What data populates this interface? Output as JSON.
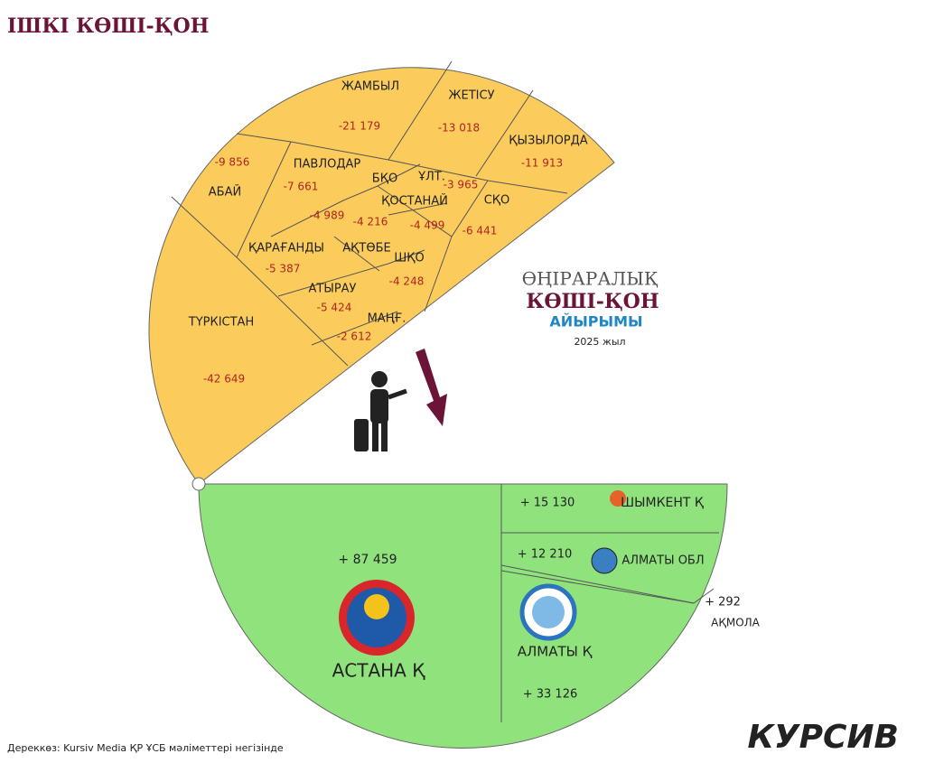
{
  "title": "ІШКІ КӨШІ-ҚОН",
  "legend": {
    "line1": "ӨҢІРАРАЛЫҚ",
    "line2": "КӨШІ-ҚОН",
    "line3": "АЙЫРЫМЫ",
    "year": "2025 жыл"
  },
  "outflow": [
    {
      "name": "ЖАМБЫЛ",
      "value": "-21 179"
    },
    {
      "name": "ЖЕТІСУ",
      "value": "-13 018"
    },
    {
      "name": "ҚЫЗЫЛОРДА",
      "value": "-11 913"
    },
    {
      "name": "АБАЙ",
      "value": "-9 856"
    },
    {
      "name": "ПАВЛОДАР",
      "value": "-7 661"
    },
    {
      "name": "ҰЛТ.",
      "value": "-3 965"
    },
    {
      "name": "СҚО",
      "value": "-6 441"
    },
    {
      "name": "БҚО",
      "value": "-4 989"
    },
    {
      "name": "ҚОСТАНАЙ",
      "value": "-4 499"
    },
    {
      "name": "АҚТӨБЕ",
      "value": "-4 216"
    },
    {
      "name": "ҚАРАҒАНДЫ",
      "value": "-5 387"
    },
    {
      "name": "ШҚО",
      "value": "-4 248"
    },
    {
      "name": "АТЫРАУ",
      "value": "-5 424"
    },
    {
      "name": "МАҢҒ.",
      "value": "-2 612"
    },
    {
      "name": "ТҮРКІСТАН",
      "value": "-42 649"
    }
  ],
  "inflow": [
    {
      "name": "АСТАНА Қ",
      "value": "+ 87 459"
    },
    {
      "name": "ШЫМКЕНТ Қ",
      "value": "+ 15 130"
    },
    {
      "name": "АЛМАТЫ ОБЛ",
      "value": "+ 12 210"
    },
    {
      "name": "АҚМОЛА",
      "value": "+ 292"
    },
    {
      "name": "АЛМАТЫ Қ",
      "value": "+ 33 126"
    }
  ],
  "source": "Дереккөз: Kursiv Media ҚР ҰСБ мәліметтері негізінде",
  "brand": "КУРСИВ"
}
